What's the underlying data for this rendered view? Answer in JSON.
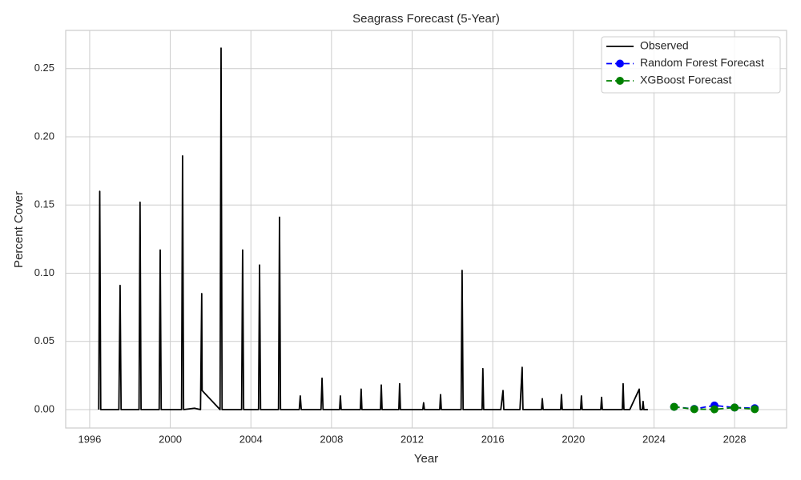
{
  "chart_data": {
    "type": "line",
    "title": "Seagrass Forecast (5-Year)",
    "x_label": "Year",
    "y_label": "Percent Cover",
    "xlim": [
      1994.81,
      2030.58
    ],
    "ylim": [
      -0.0135,
      0.278
    ],
    "xticks": [
      1996,
      2000,
      2004,
      2008,
      2012,
      2016,
      2020,
      2024,
      2028
    ],
    "yticks": [
      {
        "value": 0,
        "label": "0.00"
      },
      {
        "value": 0.05,
        "label": "0.05"
      },
      {
        "value": 0.1,
        "label": "0.10"
      },
      {
        "value": 0.15,
        "label": "0.15"
      },
      {
        "value": 0.2,
        "label": "0.20"
      },
      {
        "value": 0.25,
        "label": "0.25"
      }
    ],
    "grid": true,
    "legend": "upper right",
    "series": [
      {
        "name": "Observed",
        "color": "#000000",
        "linestyle": "solid",
        "marker": "none",
        "x": [
          1996.45,
          1996.5,
          1996.55,
          1997.45,
          1997.51,
          1997.56,
          1998.45,
          1998.5,
          1998.55,
          1999.45,
          1999.5,
          1999.55,
          2000.56,
          2000.61,
          2000.66,
          2001.2,
          2001.5,
          2001.56,
          2001.58,
          2002.47,
          2002.52,
          2002.57,
          2003.54,
          2003.59,
          2003.64,
          2004.38,
          2004.43,
          2004.48,
          2005.37,
          2005.42,
          2005.47,
          2006.4,
          2006.45,
          2006.5,
          2007.48,
          2007.53,
          2007.58,
          2008.4,
          2008.44,
          2008.48,
          2009.43,
          2009.47,
          2009.51,
          2010.43,
          2010.47,
          2010.51,
          2011.34,
          2011.38,
          2011.42,
          2012.53,
          2012.57,
          2012.61,
          2013.37,
          2013.41,
          2013.45,
          2014.43,
          2014.48,
          2014.53,
          2015.47,
          2015.51,
          2015.55,
          2016.4,
          2016.51,
          2016.55,
          2017.35,
          2017.46,
          2017.5,
          2018.42,
          2018.46,
          2018.5,
          2019.37,
          2019.41,
          2019.45,
          2020.36,
          2020.4,
          2020.44,
          2021.36,
          2021.4,
          2021.44,
          2022.43,
          2022.47,
          2022.51,
          2022.8,
          2023.27,
          2023.32,
          2023.42,
          2023.46,
          2023.5,
          2023.7
        ],
        "values": [
          0,
          0.16,
          0,
          0,
          0.091,
          0,
          0,
          0.152,
          0,
          0,
          0.117,
          0,
          0,
          0.186,
          0,
          0.001,
          0,
          0.085,
          0.014,
          0,
          0.265,
          0,
          0,
          0.117,
          0,
          0,
          0.106,
          0,
          0,
          0.141,
          0,
          0,
          0.01,
          0,
          0,
          0.023,
          0,
          0,
          0.01,
          0,
          0,
          0.015,
          0,
          0,
          0.018,
          0,
          0,
          0.019,
          0,
          0,
          0.005,
          0,
          0,
          0.011,
          0,
          0,
          0.102,
          0,
          0,
          0.03,
          0,
          0,
          0.014,
          0,
          0,
          0.031,
          0,
          0,
          0.008,
          0,
          0,
          0.011,
          0,
          0,
          0.01,
          0,
          0,
          0.009,
          0,
          0,
          0.019,
          0,
          0,
          0.015,
          0,
          0,
          0.006,
          0,
          0
        ]
      },
      {
        "name": "Random Forest Forecast",
        "color": "#0000ff",
        "linestyle": "dashed",
        "marker": "circle",
        "x": [
          2025,
          2026,
          2027,
          2028,
          2029
        ],
        "values": [
          0.002,
          0.0005,
          0.003,
          0.0015,
          0.001
        ]
      },
      {
        "name": "XGBoost Forecast",
        "color": "#008000",
        "linestyle": "dashed",
        "marker": "circle",
        "x": [
          2025,
          2026,
          2027,
          2028,
          2029
        ],
        "values": [
          0.002,
          0.0003,
          0.0002,
          0.0015,
          0.0003
        ]
      }
    ]
  }
}
